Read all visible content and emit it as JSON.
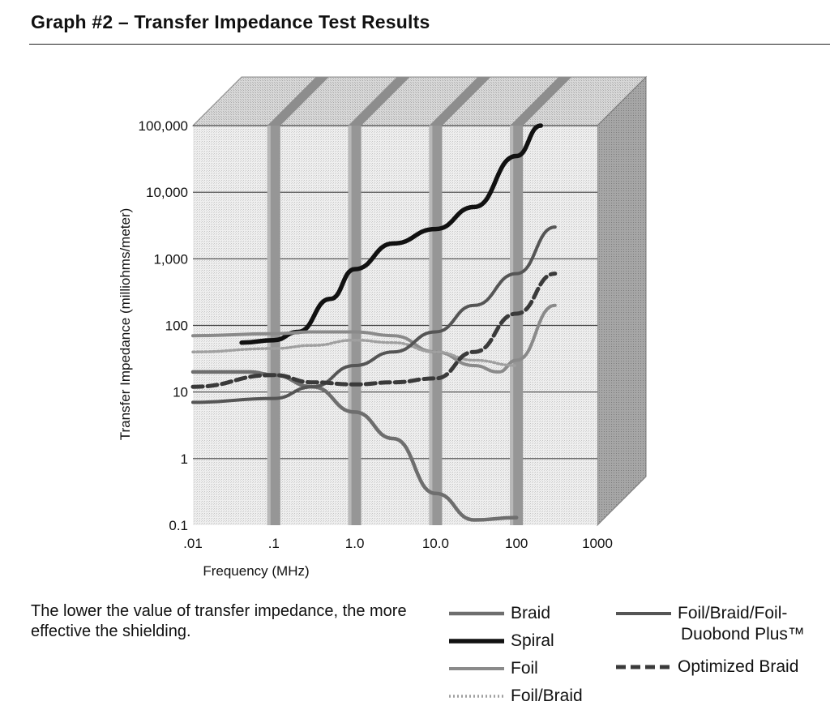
{
  "title": "Graph #2 – Transfer Impedance Test Results",
  "note": "The lower the value of transfer impedance, the more effective the shielding.",
  "chart_data": {
    "type": "line",
    "title": "Graph #2 – Transfer Impedance Test Results",
    "xlabel": "Frequency (MHz)",
    "ylabel": "Transfer Impedance (milliohms/meter)",
    "x_scale": "log",
    "y_scale": "log",
    "xlim": [
      0.01,
      1000
    ],
    "ylim": [
      0.1,
      100000
    ],
    "x_ticks": [
      ".01",
      ".1",
      "1.0",
      "10.0",
      "100",
      "1000"
    ],
    "y_ticks": [
      "100,000",
      "10,000",
      "1,000",
      "100",
      "10",
      "1",
      "0.1"
    ],
    "grid": true,
    "legend_position": "bottom-right",
    "series": [
      {
        "name": "Braid",
        "color": "#6e6e6e",
        "style": "solid-thick",
        "x": [
          0.01,
          0.05,
          0.1,
          0.3,
          1.0,
          3.0,
          10.0,
          30.0,
          100.0
        ],
        "y": [
          20,
          20,
          18,
          12,
          5,
          2,
          0.3,
          0.12,
          0.13
        ]
      },
      {
        "name": "Spiral",
        "color": "#111111",
        "style": "solid-heavy",
        "x": [
          0.04,
          0.1,
          0.2,
          0.5,
          1.0,
          3.0,
          10.0,
          30.0,
          100.0,
          200.0
        ],
        "y": [
          55,
          60,
          80,
          250,
          700,
          1700,
          2800,
          6000,
          35000,
          100000
        ]
      },
      {
        "name": "Foil",
        "color": "#8a8a8a",
        "style": "solid",
        "x": [
          0.01,
          0.1,
          0.3,
          1.0,
          3.0,
          10.0,
          30.0,
          60.0,
          100.0,
          300.0
        ],
        "y": [
          70,
          75,
          80,
          80,
          70,
          40,
          25,
          20,
          30,
          200
        ]
      },
      {
        "name": "Foil/Braid",
        "color": "#a0a0a0",
        "style": "dotted",
        "x": [
          0.01,
          0.1,
          0.3,
          1.0,
          3.0,
          10.0,
          30.0,
          100.0
        ],
        "y": [
          40,
          45,
          50,
          60,
          55,
          40,
          30,
          25
        ]
      },
      {
        "name": "Foil/Braid/Foil-Duobond Plus™",
        "color": "#555555",
        "style": "solid",
        "x": [
          0.01,
          0.1,
          0.3,
          1.0,
          3.0,
          10.0,
          30.0,
          100.0,
          300.0
        ],
        "y": [
          7,
          8,
          12,
          25,
          40,
          80,
          200,
          600,
          3000
        ]
      },
      {
        "name": "Optimized Braid",
        "color": "#3a3a3a",
        "style": "dashed",
        "x": [
          0.01,
          0.1,
          0.3,
          1.0,
          3.0,
          10.0,
          30.0,
          100.0,
          300.0
        ],
        "y": [
          12,
          18,
          14,
          13,
          14,
          16,
          40,
          150,
          600
        ]
      }
    ]
  }
}
